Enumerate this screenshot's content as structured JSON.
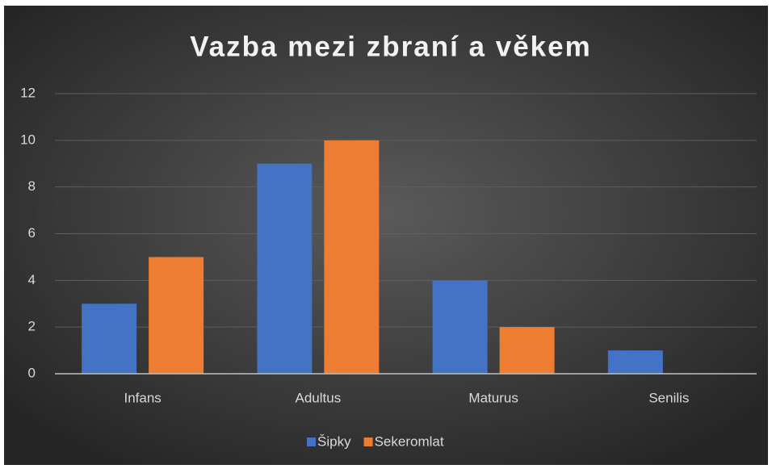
{
  "chart_data": {
    "type": "bar",
    "title": "Vazba mezi zbraní a věkem",
    "categories": [
      "Infans",
      "Adultus",
      "Maturus",
      "Senilis"
    ],
    "series": [
      {
        "name": "Šipky",
        "color": "#4472c4",
        "values": [
          3,
          9,
          4,
          1
        ]
      },
      {
        "name": "Sekeromlat",
        "color": "#ed7d31",
        "values": [
          5,
          10,
          2,
          0
        ]
      }
    ],
    "ylim": [
      0,
      12
    ],
    "yticks": [
      0,
      2,
      4,
      6,
      8,
      10,
      12
    ],
    "grid": true,
    "legend": "bottom"
  }
}
